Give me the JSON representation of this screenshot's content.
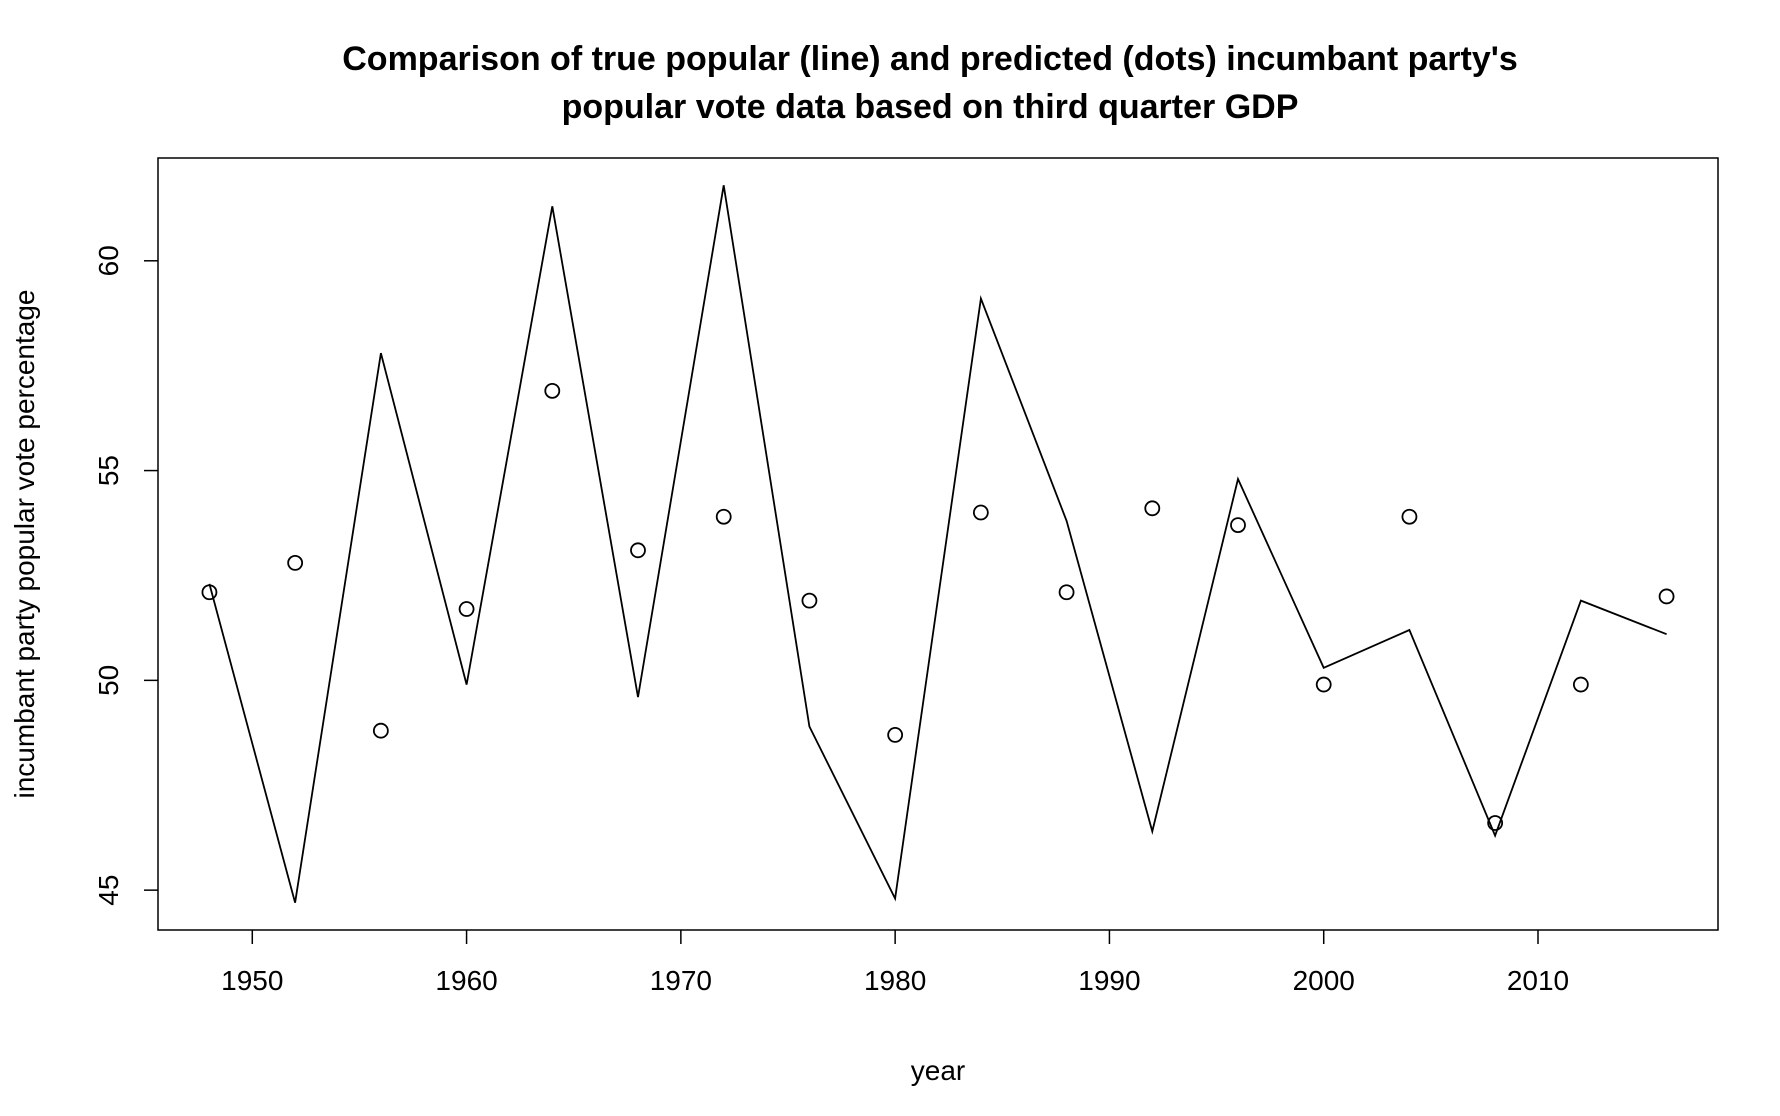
{
  "chart_data": {
    "type": "line",
    "title_lines": [
      "Comparison of true popular (line) and predicted (dots) incumbant party's",
      "popular vote data based on third quarter GDP"
    ],
    "xlabel": "year",
    "ylabel": "incumbant party popular vote percentage",
    "xlim": [
      1945.6,
      2018.4
    ],
    "ylim": [
      44.05,
      62.45
    ],
    "x_ticks": [
      1950,
      1960,
      1970,
      1980,
      1990,
      2000,
      2010
    ],
    "y_ticks": [
      45,
      50,
      55,
      60
    ],
    "x_tick_labels": [
      "1950",
      "1960",
      "1970",
      "1980",
      "1990",
      "2000",
      "2010"
    ],
    "y_tick_labels": [
      "45",
      "50",
      "55",
      "60"
    ],
    "grid": false,
    "legend": "none",
    "x": [
      1948,
      1952,
      1956,
      1960,
      1964,
      1968,
      1972,
      1976,
      1980,
      1984,
      1988,
      1992,
      1996,
      2000,
      2004,
      2008,
      2012,
      2016
    ],
    "series": [
      {
        "style": "line",
        "color": "#000000",
        "values": [
          52.3,
          44.7,
          57.8,
          49.9,
          61.3,
          49.6,
          61.8,
          48.9,
          44.8,
          59.1,
          53.8,
          46.4,
          54.8,
          50.3,
          51.2,
          46.3,
          51.9,
          51.1
        ]
      },
      {
        "style": "points",
        "color": "#000000",
        "values": [
          52.1,
          52.8,
          48.8,
          51.7,
          56.9,
          53.1,
          53.9,
          51.9,
          48.7,
          54.0,
          52.1,
          54.1,
          53.7,
          49.9,
          53.9,
          46.6,
          49.9,
          52.0
        ]
      }
    ]
  }
}
